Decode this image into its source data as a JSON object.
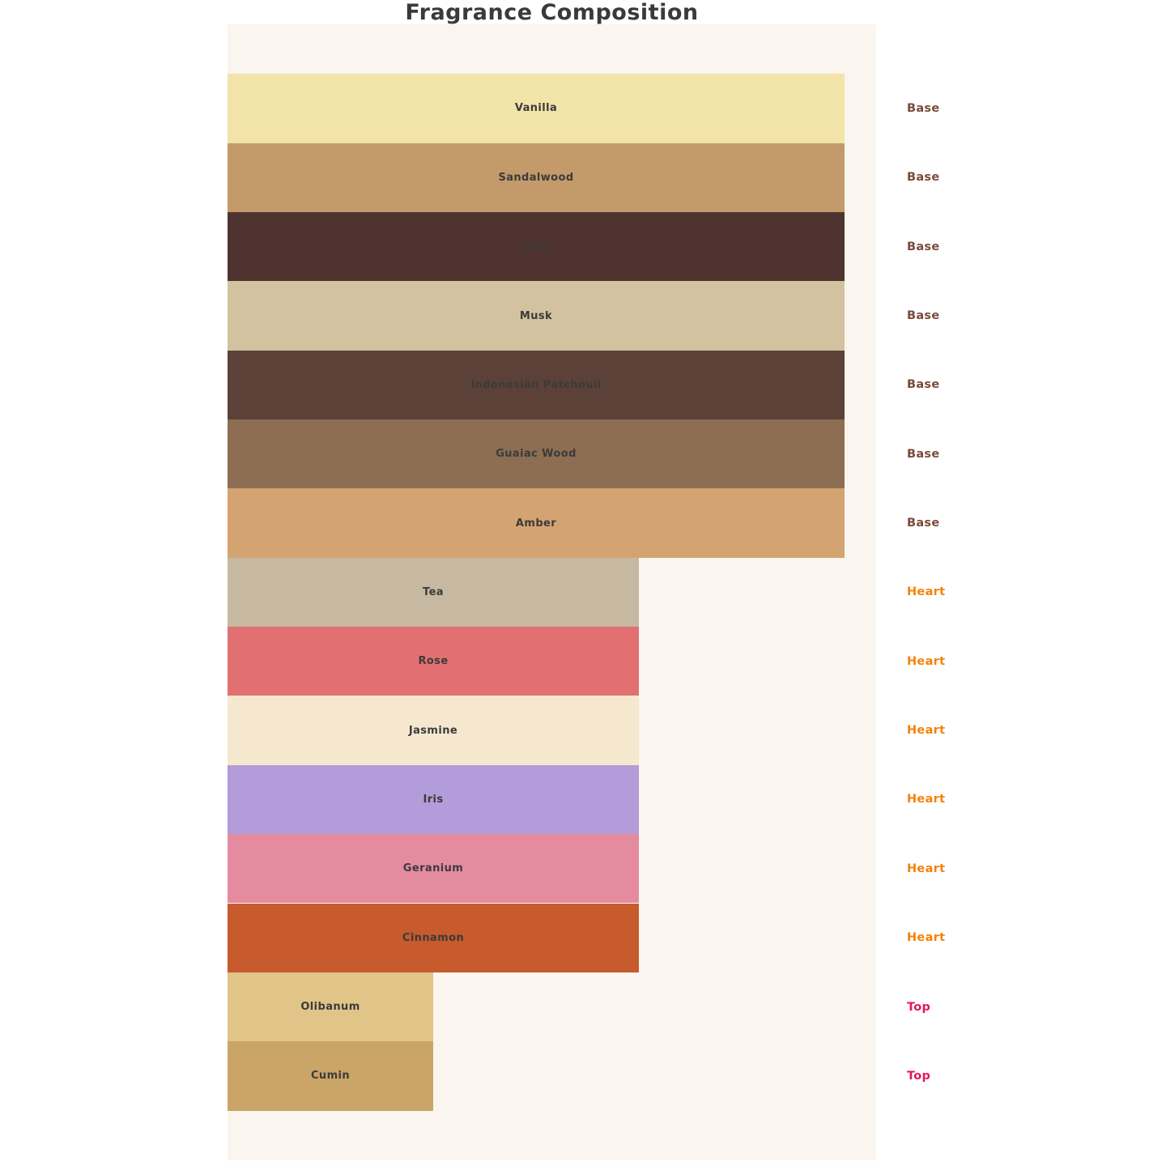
{
  "title": "Fragrance Composition",
  "colors": {
    "page_bg": "#ffffff",
    "panel_bg": "#faf6ef",
    "title_text": "#3a3a3a",
    "bar_label_text": "#3b3b3b",
    "group_label_colors": {
      "Base": "#7a4b3a",
      "Heart": "#f5820b",
      "Top": "#e4185c"
    }
  },
  "chart_data": {
    "type": "bar",
    "orientation": "horizontal",
    "title": "Fragrance Composition",
    "xlabel": "",
    "ylabel": "",
    "axes_visible": false,
    "grid": false,
    "legend_position": "none",
    "value_units": "relative bar length (Base=3, Heart=2, Top=1)",
    "xlim": [
      0,
      3
    ],
    "bars": [
      {
        "label": "Vanilla",
        "group": "Base",
        "value": 3,
        "color": "#f2e3a8"
      },
      {
        "label": "Sandalwood",
        "group": "Base",
        "value": 3,
        "color": "#c49a6b"
      },
      {
        "label": "Oud",
        "group": "Base",
        "value": 3,
        "color": "#4e332e"
      },
      {
        "label": "Musk",
        "group": "Base",
        "value": 3,
        "color": "#d3c2a0"
      },
      {
        "label": "Indonesian Patchouli",
        "group": "Base",
        "value": 3,
        "color": "#5c4138"
      },
      {
        "label": "Guaiac Wood",
        "group": "Base",
        "value": 3,
        "color": "#8d6e52"
      },
      {
        "label": "Amber",
        "group": "Base",
        "value": 3,
        "color": "#d4a372"
      },
      {
        "label": "Tea",
        "group": "Heart",
        "value": 2,
        "color": "#c7b9a1"
      },
      {
        "label": "Rose",
        "group": "Heart",
        "value": 2,
        "color": "#e27072"
      },
      {
        "label": "Jasmine",
        "group": "Heart",
        "value": 2,
        "color": "#f6e8cf"
      },
      {
        "label": "Iris",
        "group": "Heart",
        "value": 2,
        "color": "#b29cd9"
      },
      {
        "label": "Geranium",
        "group": "Heart",
        "value": 2,
        "color": "#e58ba0"
      },
      {
        "label": "Cinnamon",
        "group": "Heart",
        "value": 2,
        "color": "#c75b2d"
      },
      {
        "label": "Olibanum",
        "group": "Top",
        "value": 1,
        "color": "#e0c488"
      },
      {
        "label": "Cumin",
        "group": "Top",
        "value": 1,
        "color": "#caa567"
      }
    ]
  }
}
